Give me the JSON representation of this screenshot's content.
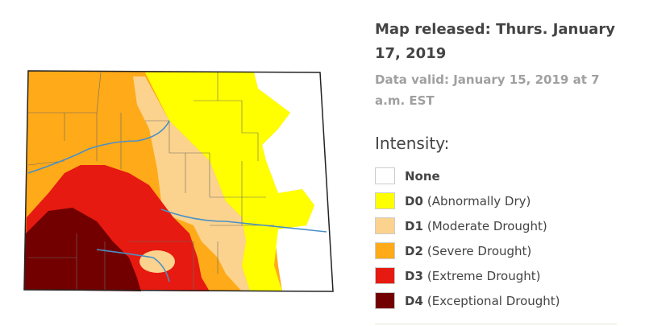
{
  "header": {
    "released": "Map released: Thurs. January 17, 2019",
    "valid": "Data valid: January 15, 2019 at 7 a.m. EST"
  },
  "legend": {
    "title": "Intensity:",
    "items": [
      {
        "code": "None",
        "color": "#ffffff"
      },
      {
        "code": "D0",
        "label": "(Abnormally Dry)",
        "color": "#ffff00"
      },
      {
        "code": "D1",
        "label": "(Moderate Drought)",
        "color": "#fcd38e"
      },
      {
        "code": "D2",
        "label": "(Severe Drought)",
        "color": "#ffaa18"
      },
      {
        "code": "D3",
        "label": "(Extreme Drought)",
        "color": "#e61a10"
      },
      {
        "code": "D4",
        "label": "(Exceptional Drought)",
        "color": "#730000"
      }
    ]
  }
}
